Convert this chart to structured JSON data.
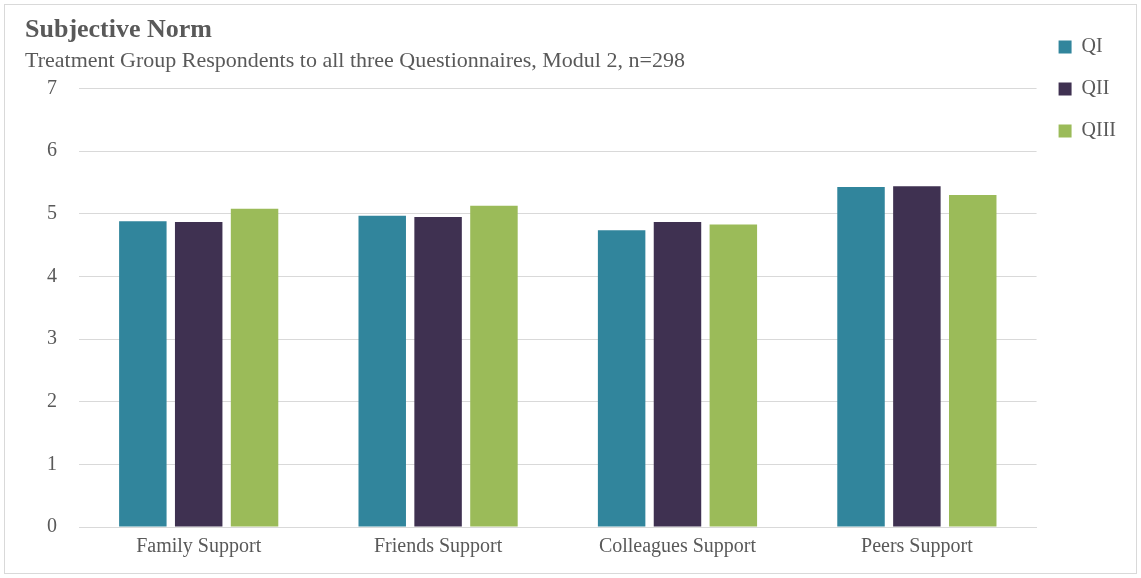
{
  "chart_data": {
    "type": "bar",
    "title": "Subjective Norm",
    "subtitle": "Treatment Group Respondents to all three Questionnaires, Modul 2, n=298",
    "categories": [
      "Family Support",
      "Friends Support",
      "Colleagues Support",
      "Peers Support"
    ],
    "series": [
      {
        "name": "QI",
        "color": "#31859c",
        "values": [
          4.88,
          4.97,
          4.74,
          5.43
        ]
      },
      {
        "name": "QII",
        "color": "#3f3151",
        "values": [
          4.87,
          4.95,
          4.87,
          5.44
        ]
      },
      {
        "name": "QIII",
        "color": "#9bbb59",
        "values": [
          5.08,
          5.13,
          4.83,
          5.3
        ]
      }
    ],
    "ylim": [
      0,
      7
    ],
    "yticks": [
      0,
      1,
      2,
      3,
      4,
      5,
      6,
      7
    ],
    "grid": "y",
    "legend": "top right"
  }
}
